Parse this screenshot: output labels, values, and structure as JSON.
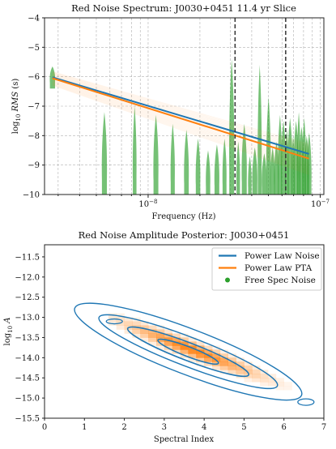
{
  "chart_data": [
    {
      "type": "line",
      "title": "Red Noise Spectrum: J0030+0451 11.4 yr Slice",
      "xlabel": "Frequency (Hz)",
      "ylabel": "log10 RMS (s)",
      "xscale": "log",
      "xlim": [
        2.5e-09,
        1.05e-07
      ],
      "ylim": [
        -10,
        -4
      ],
      "yticks": [
        -10,
        -9,
        -8,
        -7,
        -6,
        -5,
        -4
      ],
      "xtick_labels": [
        "10^-8",
        "10^-7"
      ],
      "grid": true,
      "series": [
        {
          "name": "Power Law Noise",
          "color": "#1f77b4",
          "x": [
            2.78e-09,
            8.6e-08
          ],
          "y": [
            -6.02,
            -8.62
          ]
        },
        {
          "name": "Power Law PTA",
          "color": "#ff7f0e",
          "x": [
            2.78e-09,
            8.6e-08
          ],
          "y": [
            -6.05,
            -8.78
          ]
        }
      ],
      "violins": {
        "color": "#2ca02c",
        "frequencies_nHz": [
          2.78,
          5.57,
          8.35,
          11.1,
          13.9,
          16.7,
          19.5,
          22.3,
          25.1,
          27.8,
          30.6,
          33.4,
          36.2,
          39.0,
          41.7,
          44.5,
          47.3,
          50.1,
          52.9,
          55.7,
          58.4,
          61.2,
          64.0,
          66.8,
          69.6,
          72.4,
          75.1,
          77.9,
          80.7,
          83.5,
          86.3
        ],
        "ranges": [
          [
            -6.4,
            -5.65
          ],
          [
            -10,
            -7.2
          ],
          [
            -10,
            -7.0
          ],
          [
            -10,
            -7.3
          ],
          [
            -10,
            -7.6
          ],
          [
            -10,
            -7.8
          ],
          [
            -10,
            -8.1
          ],
          [
            -10,
            -8.5
          ],
          [
            -10,
            -8.3
          ],
          [
            -10,
            -8.1
          ],
          [
            -10,
            -5.4
          ],
          [
            -10,
            -8.2
          ],
          [
            -10,
            -7.6
          ],
          [
            -10,
            -8.7
          ],
          [
            -10,
            -8.4
          ],
          [
            -10,
            -5.6
          ],
          [
            -10,
            -8.6
          ],
          [
            -10,
            -6.7
          ],
          [
            -10,
            -8.4
          ],
          [
            -10,
            -8.2
          ],
          [
            -10,
            -7.3
          ],
          [
            -10,
            -7.5
          ],
          [
            -10,
            -7.8
          ],
          [
            -10,
            -7.4
          ],
          [
            -10,
            -8.0
          ],
          [
            -10,
            -7.5
          ],
          [
            -10,
            -7.2
          ],
          [
            -10,
            -7.7
          ],
          [
            -10,
            -7.4
          ],
          [
            -10,
            -8.0
          ],
          [
            -10,
            -7.9
          ]
        ]
      },
      "vlines": [
        3.2e-08,
        6.3e-08
      ]
    },
    {
      "type": "heatmap",
      "title": "Red Noise Amplitude Posterior: J0030+0451",
      "xlabel": "Spectral Index",
      "ylabel": "log10 A",
      "xlim": [
        0,
        7
      ],
      "ylim": [
        -15.5,
        -11.2
      ],
      "xticks": [
        0,
        1,
        2,
        3,
        4,
        5,
        6,
        7
      ],
      "yticks": [
        -15.5,
        -15.0,
        -14.5,
        -14.0,
        -13.5,
        -13.0,
        -12.5,
        -12.0,
        -11.5
      ],
      "legend": {
        "placement": "top-right",
        "entries": [
          {
            "label": "Power Law Noise",
            "color": "#1f77b4",
            "marker": "line"
          },
          {
            "label": "Power Law PTA",
            "color": "#ff7f0e",
            "marker": "line"
          },
          {
            "label": "Free Spec Noise",
            "color": "#2ca02c",
            "marker": "dot"
          }
        ]
      },
      "density_peak": {
        "x": 3.6,
        "y": -13.85
      },
      "contour_color": "#1f77b4",
      "heat_color": "#ff7f0e"
    }
  ]
}
